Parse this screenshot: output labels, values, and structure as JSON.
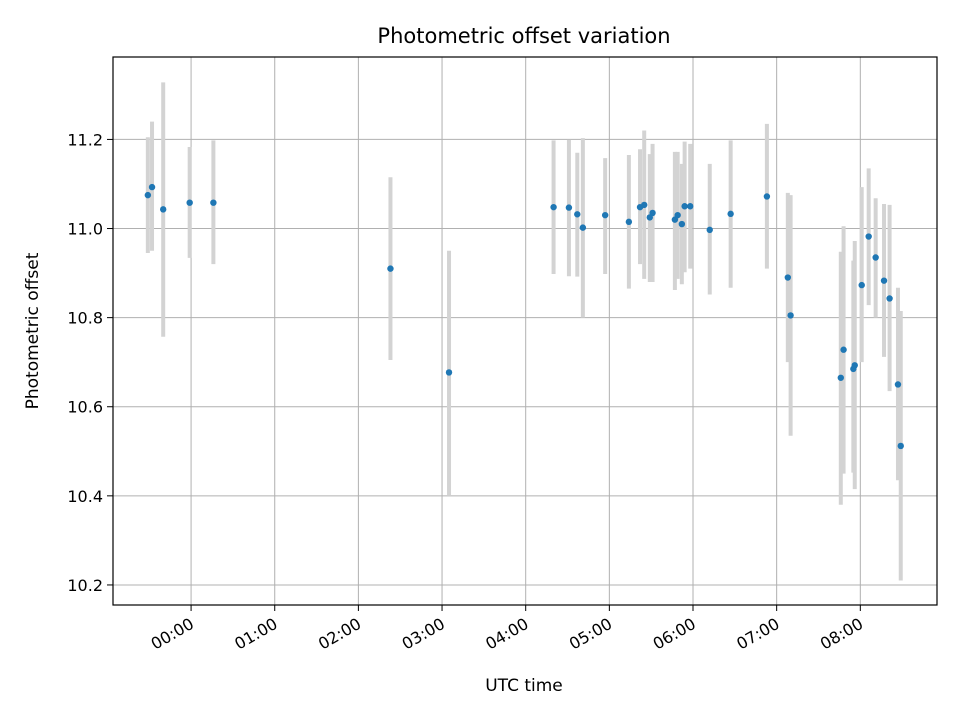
{
  "chart_data": {
    "type": "scatter",
    "title": "Photometric offset variation",
    "xlabel": "UTC time",
    "ylabel": "Photometric offset",
    "x_unit": "UTC time of day",
    "xlim": [
      "-00:56",
      "08:55"
    ],
    "ylim": [
      10.155,
      11.385
    ],
    "x_ticks": [
      "00:00",
      "01:00",
      "02:00",
      "03:00",
      "04:00",
      "05:00",
      "06:00",
      "07:00",
      "08:00"
    ],
    "y_ticks": [
      "10.2",
      "10.4",
      "10.6",
      "10.8",
      "11.0",
      "11.2"
    ],
    "grid": true,
    "point_color": "#1f77b4",
    "errorbar_color": "#d3d3d3",
    "points": [
      {
        "x": "-00:31",
        "y": 11.075,
        "ylo": 10.945,
        "yhi": 11.205
      },
      {
        "x": "-00:28",
        "y": 11.093,
        "ylo": 10.95,
        "yhi": 11.24
      },
      {
        "x": "-00:20",
        "y": 11.043,
        "ylo": 10.757,
        "yhi": 11.328
      },
      {
        "x": "-00:01",
        "y": 11.058,
        "ylo": 10.934,
        "yhi": 11.183
      },
      {
        "x": "00:16",
        "y": 11.058,
        "ylo": 10.92,
        "yhi": 11.198
      },
      {
        "x": "02:23",
        "y": 10.91,
        "ylo": 10.705,
        "yhi": 11.115
      },
      {
        "x": "03:05",
        "y": 10.677,
        "ylo": 10.4,
        "yhi": 10.95
      },
      {
        "x": "04:20",
        "y": 11.048,
        "ylo": 10.898,
        "yhi": 11.198
      },
      {
        "x": "04:31",
        "y": 11.047,
        "ylo": 10.893,
        "yhi": 11.199
      },
      {
        "x": "04:37",
        "y": 11.032,
        "ylo": 10.892,
        "yhi": 11.17
      },
      {
        "x": "04:41",
        "y": 11.002,
        "ylo": 10.8,
        "yhi": 11.203
      },
      {
        "x": "04:57",
        "y": 11.03,
        "ylo": 10.898,
        "yhi": 11.158
      },
      {
        "x": "05:14",
        "y": 11.015,
        "ylo": 10.865,
        "yhi": 11.165
      },
      {
        "x": "05:22",
        "y": 11.048,
        "ylo": 10.92,
        "yhi": 11.178
      },
      {
        "x": "05:25",
        "y": 11.053,
        "ylo": 10.887,
        "yhi": 11.22
      },
      {
        "x": "05:29",
        "y": 11.025,
        "ylo": 10.88,
        "yhi": 11.167
      },
      {
        "x": "05:31",
        "y": 11.035,
        "ylo": 10.88,
        "yhi": 11.19
      },
      {
        "x": "05:47",
        "y": 11.02,
        "ylo": 10.862,
        "yhi": 11.172
      },
      {
        "x": "05:49",
        "y": 11.03,
        "ylo": 10.887,
        "yhi": 11.172
      },
      {
        "x": "05:52",
        "y": 11.01,
        "ylo": 10.875,
        "yhi": 11.145
      },
      {
        "x": "05:54",
        "y": 11.05,
        "ylo": 10.902,
        "yhi": 11.195
      },
      {
        "x": "05:58",
        "y": 11.05,
        "ylo": 10.91,
        "yhi": 11.19
      },
      {
        "x": "06:12",
        "y": 10.997,
        "ylo": 10.852,
        "yhi": 11.145
      },
      {
        "x": "06:27",
        "y": 11.033,
        "ylo": 10.867,
        "yhi": 11.198
      },
      {
        "x": "06:53",
        "y": 11.072,
        "ylo": 10.91,
        "yhi": 11.235
      },
      {
        "x": "07:08",
        "y": 10.89,
        "ylo": 10.7,
        "yhi": 11.08
      },
      {
        "x": "07:10",
        "y": 10.805,
        "ylo": 10.535,
        "yhi": 11.075
      },
      {
        "x": "07:46",
        "y": 10.665,
        "ylo": 10.38,
        "yhi": 10.948
      },
      {
        "x": "07:48",
        "y": 10.728,
        "ylo": 10.45,
        "yhi": 11.005
      },
      {
        "x": "07:55",
        "y": 10.685,
        "ylo": 10.452,
        "yhi": 10.928
      },
      {
        "x": "07:56",
        "y": 10.693,
        "ylo": 10.415,
        "yhi": 10.972
      },
      {
        "x": "08:01",
        "y": 10.873,
        "ylo": 10.7,
        "yhi": 11.093
      },
      {
        "x": "08:06",
        "y": 10.982,
        "ylo": 10.828,
        "yhi": 11.135
      },
      {
        "x": "08:11",
        "y": 10.935,
        "ylo": 10.8,
        "yhi": 11.068
      },
      {
        "x": "08:17",
        "y": 10.883,
        "ylo": 10.712,
        "yhi": 11.055
      },
      {
        "x": "08:21",
        "y": 10.843,
        "ylo": 10.635,
        "yhi": 11.053
      },
      {
        "x": "08:27",
        "y": 10.65,
        "ylo": 10.435,
        "yhi": 10.867
      },
      {
        "x": "08:29",
        "y": 10.512,
        "ylo": 10.21,
        "yhi": 10.815
      }
    ]
  }
}
